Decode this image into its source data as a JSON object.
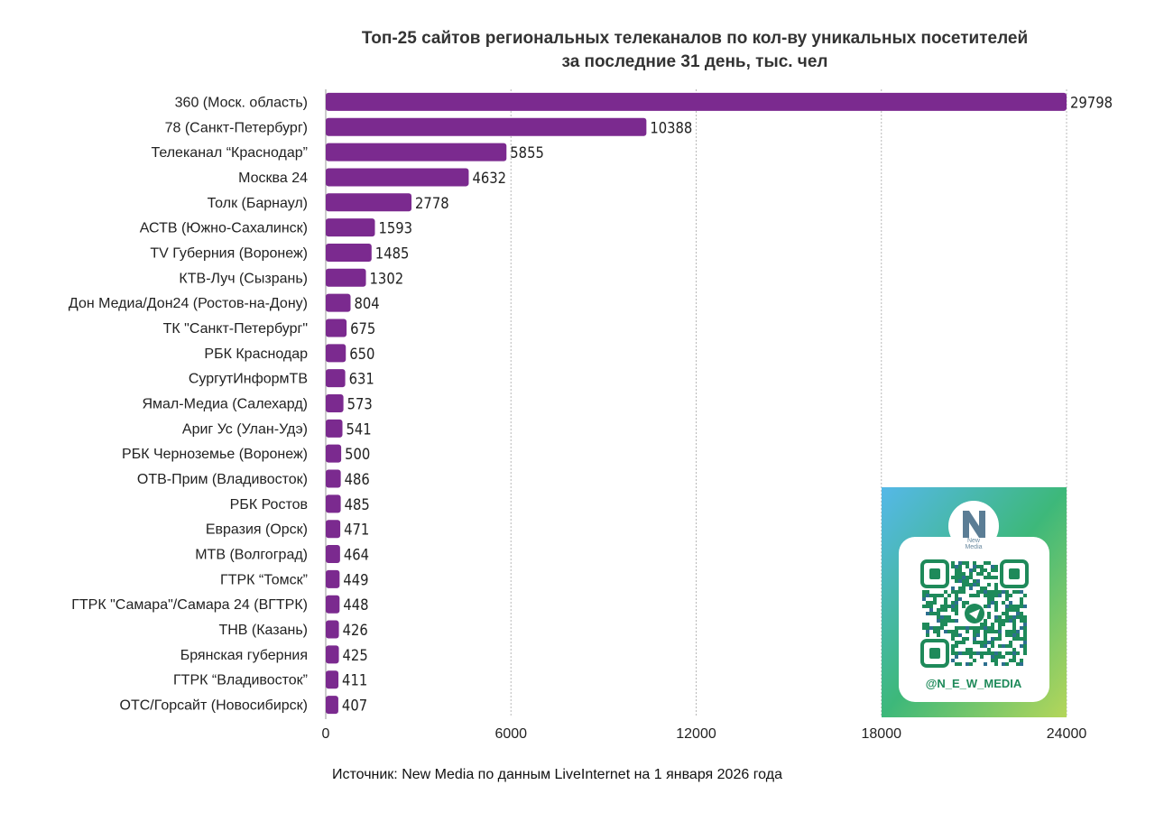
{
  "chart_data": {
    "type": "bar",
    "orientation": "horizontal",
    "title": [
      "Топ-25 сайтов региональных телеканалов по кол-ву уникальных посетителей",
      "за последние 31 день, тыс. чел"
    ],
    "categories": [
      "360 (Моск. область)",
      "78 (Санкт-Петербург)",
      "Телеканал “Краснодар”",
      "Москва 24",
      "Толк (Барнаул)",
      "АСТВ (Южно-Сахалинск)",
      "TV Губерния (Воронеж)",
      "КТВ-Луч (Сызрань)",
      "Дон Медиа/Дон24 (Ростов-на-Дону)",
      "ТК \"Санкт-Петербург\"",
      "РБК Краснодар",
      "СургутИнформТВ",
      "Ямал-Медиа (Салехард)",
      "Ариг Ус (Улан-Удэ)",
      "РБК Черноземье (Воронеж)",
      "ОТВ-Прим (Владивосток)",
      "РБК Ростов",
      "Евразия (Орск)",
      "МТВ (Волгоград)",
      "ГТРК “Томск”",
      "ГТРК \"Самара\"/Самара 24 (ВГТРК)",
      "ТНВ (Казань)",
      "Брянская губерния",
      "ГТРК “Владивосток”",
      "ОТС/Горсайт (Новосибирск)"
    ],
    "values": [
      29798,
      10388,
      5855,
      4632,
      2778,
      1593,
      1485,
      1302,
      804,
      675,
      650,
      631,
      573,
      541,
      500,
      486,
      485,
      471,
      464,
      449,
      448,
      426,
      425,
      411,
      407
    ],
    "value_labels": [
      "29798",
      "10388",
      "5855",
      "4632",
      "2778",
      "1593",
      "1485",
      "1302",
      "804",
      "675",
      "650",
      "631",
      "573",
      "541",
      "500",
      "486",
      "485",
      "471",
      "464",
      "449",
      "448",
      "426",
      "425",
      "411",
      "407"
    ],
    "xlim": [
      0,
      24000
    ],
    "x_ticks": [
      0,
      6000,
      12000,
      18000,
      24000
    ],
    "x_tick_labels": [
      "0",
      "6000",
      "12000",
      "18000",
      "24000"
    ],
    "grid": "vertical dashed",
    "bar_color": "#7b2a8f",
    "note": "first bar is truncated at the axis maximum"
  },
  "source": "Источник: New Media по данным LiveInternet на 1 января 2026 года",
  "promo": {
    "brand_lines": [
      "New",
      "Media"
    ],
    "handle": "@N_E_W_MEDIA",
    "accent": "#1e8a5a",
    "gradient": [
      "#55b8e8",
      "#3db87a",
      "#a8d65a"
    ]
  }
}
